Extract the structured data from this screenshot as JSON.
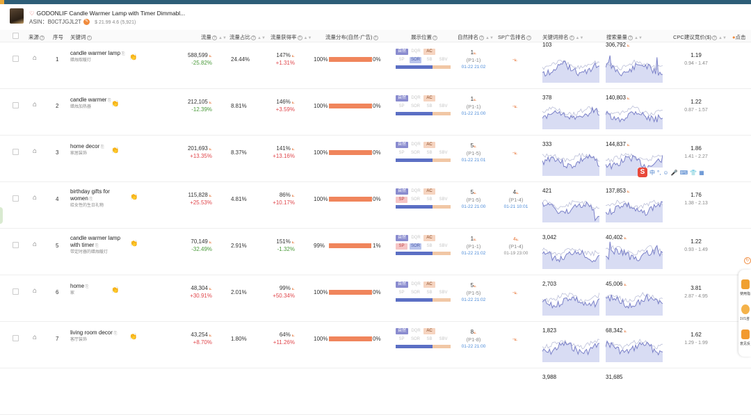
{
  "product": {
    "title": "GODONLIF Candle Warmer Lamp with Timer Dimmabl...",
    "asin_label": "ASIN：",
    "asin": "B0CTJGJL2T",
    "price_rating": "$ 21.99  4.6 (5,921)"
  },
  "columns": {
    "flow_source": "来源",
    "index": "序号",
    "keyword": "关键词",
    "traffic": "流量",
    "traffic_share": "流量占比",
    "traffic_rate": "流量获得率",
    "dist": "流量分布(自然-广告)",
    "display": "展示位置",
    "natural_rank": "自然排名",
    "sp_rank": "SP广告排名",
    "kw_trend": "关键词排名",
    "search_volume": "搜索量量",
    "cpc": "CPC建议竞价($)",
    "click": "点击"
  },
  "chips": {
    "nat": "自然",
    "dqr": "DQR",
    "ac": "AC",
    "sp": "SP",
    "sor": "SOR",
    "sb": "SB",
    "sbv": "SBV"
  },
  "rows": [
    {
      "idx": "1",
      "kw": "candle warmer lamp",
      "kw_cn": "蜡烛取暖灯",
      "traffic": "588,599",
      "traffic_chg": "-25.82%",
      "share": "24.44%",
      "rate": "147%",
      "rate_chg": "+1.31%",
      "dist_l": "100%",
      "dist_r": "0%",
      "nat_rank": "1",
      "nat_page": "(P1-1)",
      "nat_time": "01-22 21:02",
      "sp_rank": "-",
      "sp_page": "",
      "sp_time": "",
      "kw_rank": "103",
      "vol": "306,792",
      "cpc": "1.19",
      "cpc_range": "0.94 - 1.47",
      "sp_active": false,
      "sor_active": true
    },
    {
      "idx": "2",
      "kw": "candle warmer",
      "kw_cn": "蜡烛加热器",
      "traffic": "212,105",
      "traffic_chg": "-12.39%",
      "share": "8.81%",
      "rate": "146%",
      "rate_chg": "+3.59%",
      "dist_l": "100%",
      "dist_r": "0%",
      "nat_rank": "1",
      "nat_page": "(P1-1)",
      "nat_time": "01-22 21:00",
      "sp_rank": "-",
      "sp_page": "",
      "sp_time": "",
      "kw_rank": "378",
      "vol": "140,803",
      "cpc": "1.22",
      "cpc_range": "0.87 - 1.57",
      "sp_active": false,
      "sor_active": false
    },
    {
      "idx": "3",
      "kw": "home decor",
      "kw_cn": "家居装饰",
      "traffic": "201,693",
      "traffic_chg": "+13.35%",
      "share": "8.37%",
      "rate": "141%",
      "rate_chg": "+13.16%",
      "dist_l": "100%",
      "dist_r": "0%",
      "nat_rank": "5",
      "nat_page": "(P1-5)",
      "nat_time": "01-22 21:01",
      "sp_rank": "-",
      "sp_page": "",
      "sp_time": "",
      "kw_rank": "333",
      "vol": "144,837",
      "cpc": "1.86",
      "cpc_range": "1.41 - 2.27",
      "sp_active": false,
      "sor_active": false
    },
    {
      "idx": "4",
      "kw": "birthday gifts for women",
      "kw_cn": "给女性的生日礼物",
      "traffic": "115,828",
      "traffic_chg": "+25.53%",
      "share": "4.81%",
      "rate": "86%",
      "rate_chg": "+10.17%",
      "dist_l": "100%",
      "dist_r": "0%",
      "nat_rank": "5",
      "nat_page": "(P1-5)",
      "nat_time": "01-22 21:00",
      "sp_rank": "4",
      "sp_page": "(P1-4)",
      "sp_time": "01-21 10:01",
      "kw_rank": "421",
      "vol": "137,853",
      "cpc": "1.76",
      "cpc_range": "1.38 - 2.13",
      "sp_active": true,
      "sor_active": false
    },
    {
      "idx": "5",
      "kw": "candle warmer lamp with timer",
      "kw_cn": "带定时器的蜡烛暖灯",
      "traffic": "70,149",
      "traffic_chg": "-32.49%",
      "share": "2.91%",
      "rate": "151%",
      "rate_chg": "-1.32%",
      "dist_l": "99%",
      "dist_r": "1%",
      "nat_rank": "1",
      "nat_page": "(P1-1)",
      "nat_time": "01-22 21:02",
      "sp_rank": "4",
      "sp_page": "(P1-4)",
      "sp_time": "01-19 23:00",
      "kw_rank": "3,042",
      "vol": "40,402",
      "cpc": "1.22",
      "cpc_range": "0.93 - 1.49",
      "sp_active": true,
      "sor_active": true
    },
    {
      "idx": "6",
      "kw": "home",
      "kw_cn": "家",
      "traffic": "48,304",
      "traffic_chg": "+30.91%",
      "share": "2.01%",
      "rate": "99%",
      "rate_chg": "+50.34%",
      "dist_l": "100%",
      "dist_r": "0%",
      "nat_rank": "5",
      "nat_page": "(P1-5)",
      "nat_time": "01-22 21:02",
      "sp_rank": "-",
      "sp_page": "",
      "sp_time": "",
      "kw_rank": "2,703",
      "vol": "45,006",
      "cpc": "3.81",
      "cpc_range": "2.87 - 4.95",
      "sp_active": false,
      "sor_active": false
    },
    {
      "idx": "7",
      "kw": "living room decor",
      "kw_cn": "客厅装饰",
      "traffic": "43,254",
      "traffic_chg": "+8.70%",
      "share": "1.80%",
      "rate": "64%",
      "rate_chg": "+11.26%",
      "dist_l": "100%",
      "dist_r": "0%",
      "nat_rank": "8",
      "nat_page": "(P1-8)",
      "nat_time": "01-22 21:00",
      "sp_rank": "-",
      "sp_page": "",
      "sp_time": "",
      "kw_rank": "1,823",
      "vol": "68,342",
      "cpc": "1.62",
      "cpc_range": "1.29 - 1.99",
      "sp_active": false,
      "sor_active": false
    }
  ],
  "partial_row": {
    "kw_rank": "3,988",
    "vol": "31,685"
  },
  "sogou": {
    "label": "S",
    "items": [
      "中",
      "°,",
      "☺",
      "🎤",
      "⌨",
      "👕",
      "▦"
    ]
  },
  "side": {
    "t1": "使用指",
    "t2": "1V1咨",
    "t3": "意见反"
  }
}
